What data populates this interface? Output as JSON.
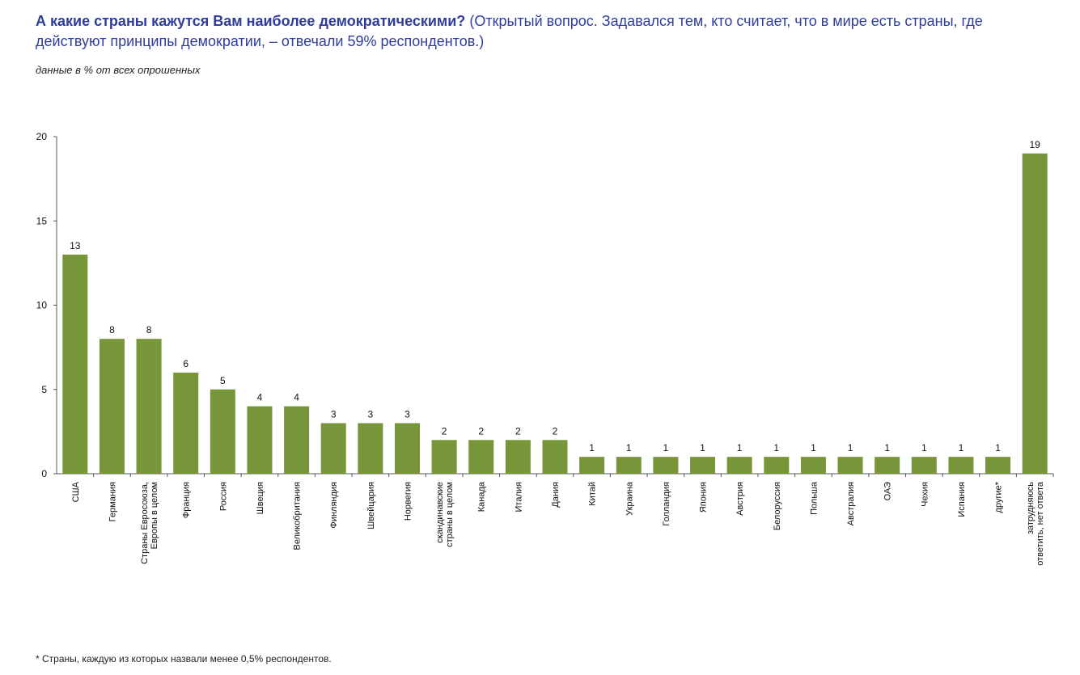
{
  "header": {
    "question": "А какие страны кажутся Вам наиболее демократическими?",
    "note": "(Открытый вопрос. Задавался тем, кто считает, что в мире есть страны, где действуют принципы демократии, – отвечали 59% респондентов.)",
    "subtitle": "данные в % от всех опрошенных"
  },
  "footnote": "*  Страны, каждую из которых назвали менее 0,5% респондентов.",
  "chart_data": {
    "type": "bar",
    "categories": [
      "США",
      "Германия",
      "Страны Евросоюза, Европы в целом",
      "Франция",
      "Россия",
      "Швеция",
      "Великобритания",
      "Финляндия",
      "Швейцария",
      "Норвегия",
      "скандинавские страны в целом",
      "Канада",
      "Италия",
      "Дания",
      "Китай",
      "Украина",
      "Голландия",
      "Япония",
      "Австрия",
      "Белоруссия",
      "Польша",
      "Австралия",
      "ОАЭ",
      "Чехия",
      "Испания",
      "другие*",
      "затрудняюсь ответить, нет ответа"
    ],
    "values": [
      13,
      8,
      8,
      6,
      5,
      4,
      4,
      3,
      3,
      3,
      2,
      2,
      2,
      2,
      1,
      1,
      1,
      1,
      1,
      1,
      1,
      1,
      1,
      1,
      1,
      1,
      19
    ],
    "ylim": [
      0,
      20
    ],
    "yticks": [
      0,
      5,
      10,
      15,
      20
    ],
    "bar_color": "#77963a",
    "grid": false,
    "legend": "none",
    "data_labels": true
  }
}
